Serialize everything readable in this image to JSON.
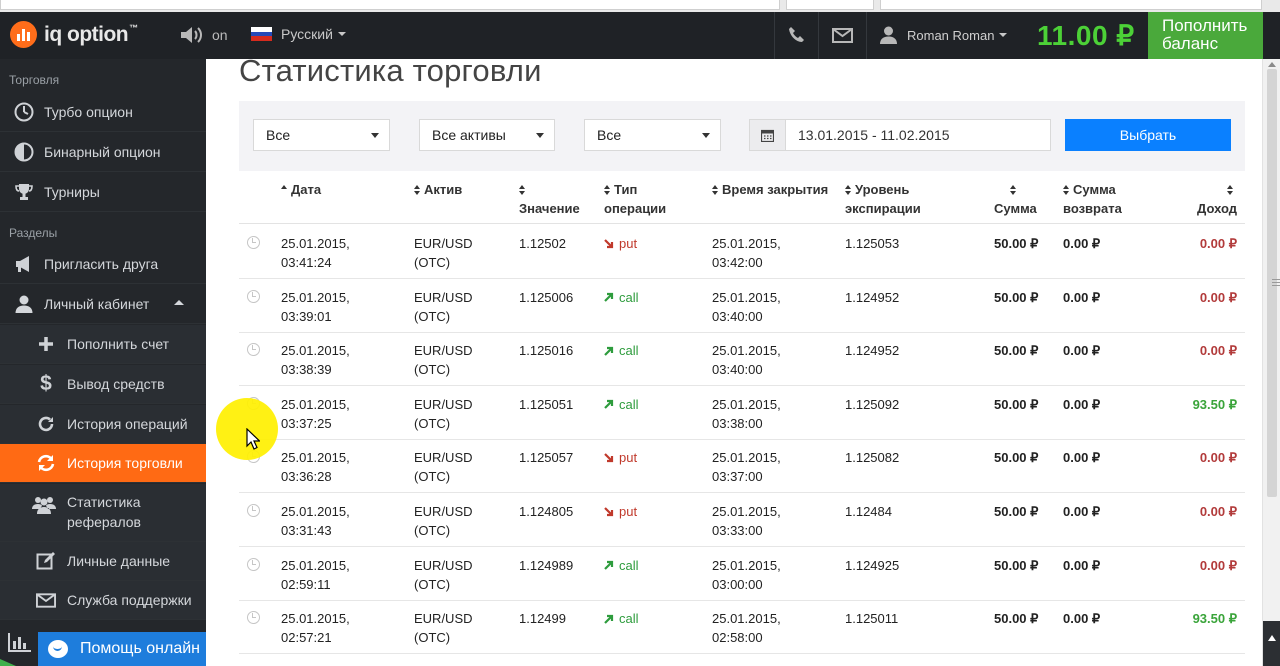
{
  "header": {
    "logo_text": "iq option",
    "logo_tm": "™",
    "sound_label": "on",
    "language": "Русский",
    "user_name": "Roman Roman",
    "balance": "11.00 ₽",
    "deposit_button": "Пополнить баланс",
    "colors": {
      "balance": "#4cd137",
      "deposit": "#4aa93b"
    }
  },
  "sidebar": {
    "section_trading": "Торговля",
    "section_sections": "Разделы",
    "items": [
      {
        "label": "Турбо опцион",
        "icon": "clock-icon"
      },
      {
        "label": "Бинарный опцион",
        "icon": "half-clock-icon"
      },
      {
        "label": "Турниры",
        "icon": "trophy-icon"
      },
      {
        "label": "Пригласить друга",
        "icon": "megaphone-icon"
      },
      {
        "label": "Личный кабинет",
        "icon": "user-icon"
      },
      {
        "label": "Пополнить счет",
        "icon": "plus-icon"
      },
      {
        "label": "Вывод средств",
        "icon": "dollar-icon"
      },
      {
        "label": "История операций",
        "icon": "refresh-icon"
      },
      {
        "label": "История торговли",
        "icon": "refresh-icon",
        "active": true
      },
      {
        "label": "Статистика рефералов",
        "icon": "users-icon"
      },
      {
        "label": "Личные данные",
        "icon": "edit-icon"
      },
      {
        "label": "Служба поддержки",
        "icon": "envelope-icon"
      }
    ],
    "help_online": "Помощь онлайн",
    "active_color": "#ff6a14"
  },
  "main": {
    "title": "Статистика торговли",
    "filters": {
      "type": "Все",
      "assets": "Все активы",
      "direction": "Все",
      "date_range": "13.01.2015 - 11.02.2015",
      "submit": "Выбрать"
    },
    "columns": {
      "date": "Дата",
      "asset": "Актив",
      "value": "Значение",
      "operation_type_1": "Тип",
      "operation_type_2": "операции",
      "close_time": "Время закрытия",
      "expiry_level_1": "Уровень",
      "expiry_level_2": "экспирации",
      "amount": "Сумма",
      "refund_1": "Сумма",
      "refund_2": "возврата",
      "income": "Доход"
    },
    "rows": [
      {
        "date1": "25.01.2015,",
        "date2": "03:41:24",
        "asset1": "EUR/USD",
        "asset2": "(OTC)",
        "value": "1.12502",
        "dir": "put",
        "close1": "25.01.2015,",
        "close2": "03:42:00",
        "level": "1.125053",
        "amount": "50.00 ₽",
        "refund": "0.00 ₽",
        "income": "0.00 ₽"
      },
      {
        "date1": "25.01.2015,",
        "date2": "03:39:01",
        "asset1": "EUR/USD",
        "asset2": "(OTC)",
        "value": "1.125006",
        "dir": "call",
        "close1": "25.01.2015,",
        "close2": "03:40:00",
        "level": "1.124952",
        "amount": "50.00 ₽",
        "refund": "0.00 ₽",
        "income": "0.00 ₽"
      },
      {
        "date1": "25.01.2015,",
        "date2": "03:38:39",
        "asset1": "EUR/USD",
        "asset2": "(OTC)",
        "value": "1.125016",
        "dir": "call",
        "close1": "25.01.2015,",
        "close2": "03:40:00",
        "level": "1.124952",
        "amount": "50.00 ₽",
        "refund": "0.00 ₽",
        "income": "0.00 ₽"
      },
      {
        "date1": "25.01.2015,",
        "date2": "03:37:25",
        "asset1": "EUR/USD",
        "asset2": "(OTC)",
        "value": "1.125051",
        "dir": "call",
        "close1": "25.01.2015,",
        "close2": "03:38:00",
        "level": "1.125092",
        "amount": "50.00 ₽",
        "refund": "0.00 ₽",
        "income": "93.50 ₽"
      },
      {
        "date1": "25.01.2015,",
        "date2": "03:36:28",
        "asset1": "EUR/USD",
        "asset2": "(OTC)",
        "value": "1.125057",
        "dir": "put",
        "close1": "25.01.2015,",
        "close2": "03:37:00",
        "level": "1.125082",
        "amount": "50.00 ₽",
        "refund": "0.00 ₽",
        "income": "0.00 ₽"
      },
      {
        "date1": "25.01.2015,",
        "date2": "03:31:43",
        "asset1": "EUR/USD",
        "asset2": "(OTC)",
        "value": "1.124805",
        "dir": "put",
        "close1": "25.01.2015,",
        "close2": "03:33:00",
        "level": "1.12484",
        "amount": "50.00 ₽",
        "refund": "0.00 ₽",
        "income": "0.00 ₽"
      },
      {
        "date1": "25.01.2015,",
        "date2": "02:59:11",
        "asset1": "EUR/USD",
        "asset2": "(OTC)",
        "value": "1.124989",
        "dir": "call",
        "close1": "25.01.2015,",
        "close2": "03:00:00",
        "level": "1.124925",
        "amount": "50.00 ₽",
        "refund": "0.00 ₽",
        "income": "0.00 ₽"
      },
      {
        "date1": "25.01.2015,",
        "date2": "02:57:21",
        "asset1": "EUR/USD",
        "asset2": "(OTC)",
        "value": "1.12499",
        "dir": "call",
        "close1": "25.01.2015,",
        "close2": "02:58:00",
        "level": "1.125011",
        "amount": "50.00 ₽",
        "refund": "0.00 ₽",
        "income": "93.50 ₽"
      }
    ]
  }
}
